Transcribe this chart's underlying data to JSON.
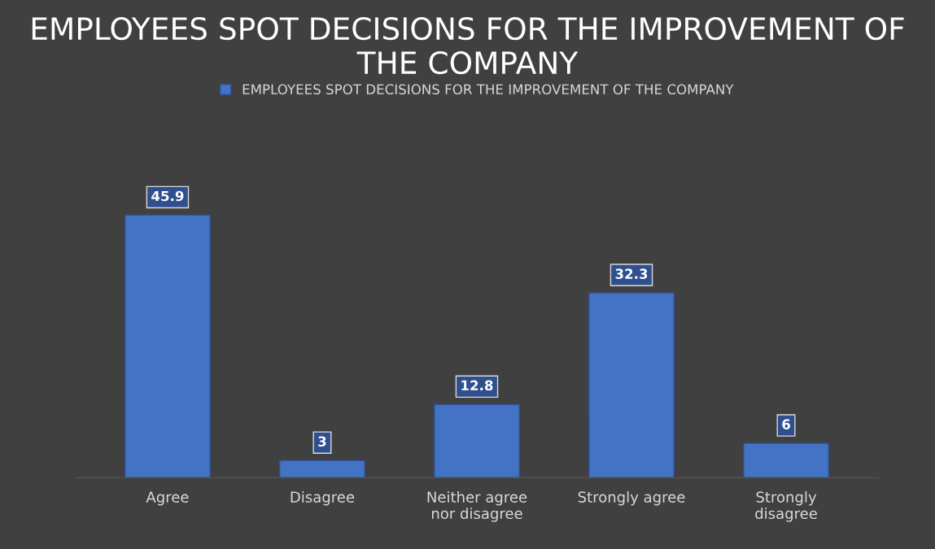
{
  "chart_data": {
    "type": "bar",
    "title": "EMPLOYEES SPOT DECISIONS FOR THE IMPROVEMENT OF THE COMPANY",
    "categories": [
      "Agree",
      "Disagree",
      "Neither agree nor disagree",
      "Strongly agree",
      "Strongly disagree"
    ],
    "series": [
      {
        "name": "EMPLOYEES SPOT DECISIONS FOR THE IMPROVEMENT OF THE COMPANY",
        "color": "#4472c4",
        "values": [
          45.9,
          3,
          12.8,
          32.3,
          6
        ]
      }
    ],
    "data_labels": true,
    "legend": "top",
    "grid": false
  }
}
